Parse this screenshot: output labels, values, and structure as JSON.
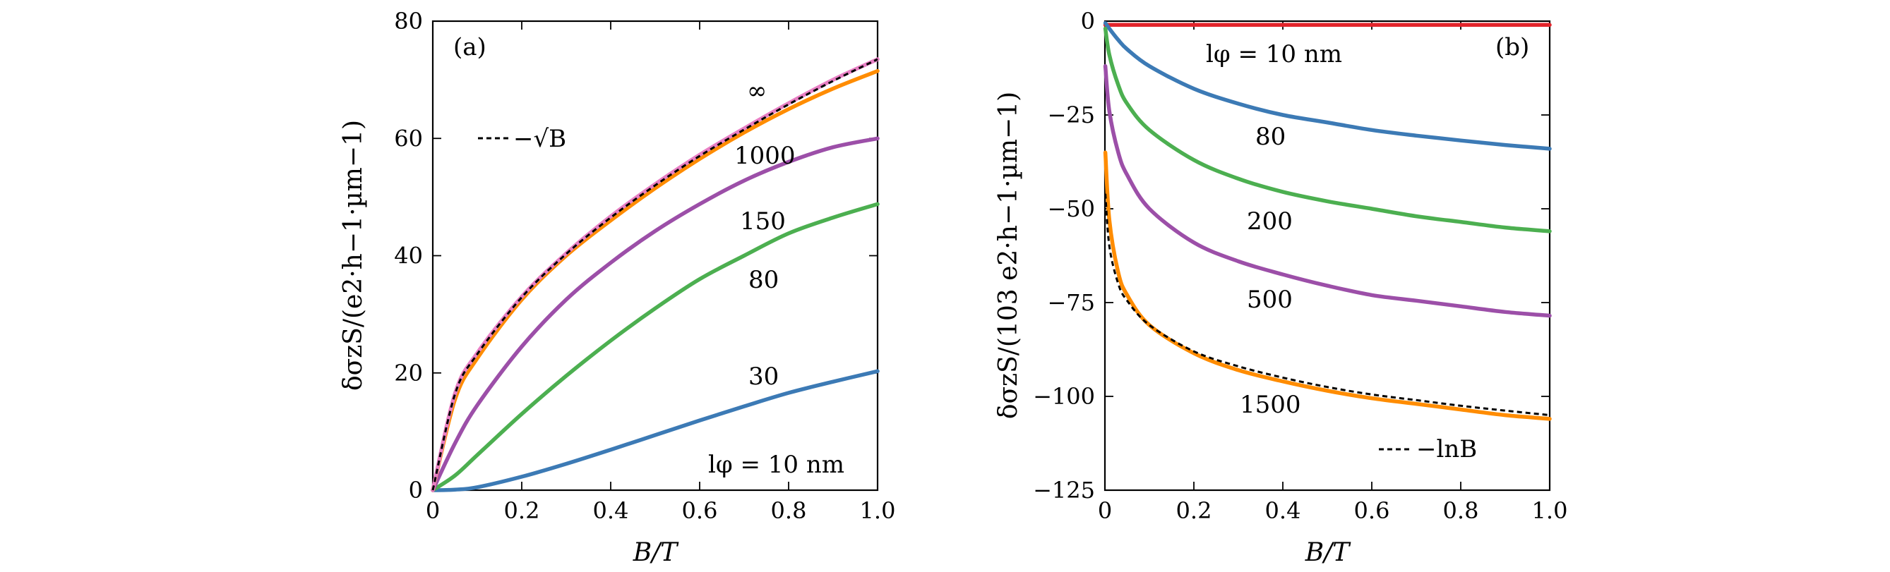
{
  "chart_data": [
    {
      "type": "line",
      "panel_label": "(a)",
      "xlabel": "B/T",
      "ylabel": "δσzS/(e2·h−1·µm−1)",
      "xlim": [
        0,
        1
      ],
      "ylim": [
        0,
        80
      ],
      "x_ticks": [
        "0",
        "0.2",
        "0.4",
        "0.6",
        "0.8",
        "1.0"
      ],
      "y_ticks": [
        "0",
        "20",
        "40",
        "60",
        "80"
      ],
      "legend_text": "−√B",
      "annotation_prefix": "lφ = 10 nm",
      "x": [
        0,
        0.05,
        0.1,
        0.2,
        0.3,
        0.4,
        0.5,
        0.6,
        0.7,
        0.8,
        0.9,
        1.0
      ],
      "series": [
        {
          "label": "30",
          "color": "#3c7ab5",
          "values": [
            0,
            0.1,
            0.5,
            2.3,
            4.5,
            6.9,
            9.4,
            11.9,
            14.3,
            16.6,
            18.5,
            20.3
          ]
        },
        {
          "label": "80",
          "color": "#4caf50",
          "values": [
            0,
            2.5,
            6.0,
            13.0,
            19.5,
            25.5,
            31.0,
            36.0,
            40.0,
            43.8,
            46.5,
            48.8
          ]
        },
        {
          "label": "150",
          "color": "#9c4fa8",
          "values": [
            0,
            8.0,
            14.5,
            24.5,
            32.5,
            38.8,
            44.2,
            48.8,
            52.8,
            56.0,
            58.5,
            60.0
          ]
        },
        {
          "label": "1000",
          "color": "#ff8c00",
          "values": [
            0,
            15.5,
            22.5,
            32.5,
            40.0,
            46.0,
            51.5,
            56.5,
            61.0,
            65.0,
            68.5,
            71.5
          ]
        },
        {
          "label": "∞",
          "color": "#e87fc4",
          "values": [
            0,
            16.5,
            23.4,
            33.0,
            40.4,
            46.7,
            52.2,
            57.2,
            61.7,
            66.0,
            70.0,
            73.5
          ]
        },
        {
          "label": "−√B",
          "color": "#000000",
          "dashed": true,
          "values": [
            0,
            16.4,
            23.2,
            32.9,
            40.3,
            46.5,
            52.0,
            57.0,
            61.5,
            65.8,
            69.8,
            73.5
          ]
        }
      ]
    },
    {
      "type": "line",
      "panel_label": "(b)",
      "xlabel": "B/T",
      "ylabel": "δσzS/(103 e2·h−1·µm−1)",
      "xlim": [
        0,
        1
      ],
      "ylim": [
        -125,
        0
      ],
      "x_ticks": [
        "0",
        "0.2",
        "0.4",
        "0.6",
        "0.8",
        "1.0"
      ],
      "y_ticks": [
        "0",
        "−25",
        "−50",
        "−75",
        "−100",
        "−125"
      ],
      "legend_text": "−lnB",
      "annotation_prefix": "lφ = 10 nm",
      "x": [
        0.001,
        0.01,
        0.03,
        0.05,
        0.1,
        0.2,
        0.3,
        0.4,
        0.5,
        0.6,
        0.7,
        0.8,
        0.9,
        1.0
      ],
      "series": [
        {
          "label": "10",
          "color": "#e3242b",
          "values": [
            -1,
            -1,
            -1,
            -1,
            -1,
            -1,
            -1,
            -1,
            -1,
            -1,
            -1,
            -1,
            -1,
            -1
          ]
        },
        {
          "label": "80",
          "color": "#3c7ab5",
          "values": [
            -0.5,
            -2,
            -5,
            -7.5,
            -12,
            -18,
            -22,
            -25,
            -27,
            -29,
            -30.5,
            -31.8,
            -33,
            -34
          ]
        },
        {
          "label": "200",
          "color": "#4caf50",
          "values": [
            -2,
            -9,
            -17,
            -22,
            -29,
            -37,
            -42,
            -45.5,
            -48,
            -50,
            -52,
            -53.5,
            -55,
            -56
          ]
        },
        {
          "label": "500",
          "color": "#9c4fa8",
          "values": [
            -12,
            -24,
            -35,
            -41,
            -50,
            -59,
            -64,
            -67.5,
            -70.5,
            -73,
            -74.5,
            -76,
            -77.5,
            -78.5
          ]
        },
        {
          "label": "1500",
          "color": "#ff8c00",
          "values": [
            -35,
            -53,
            -67,
            -73,
            -81,
            -88.5,
            -93,
            -96,
            -98.5,
            -100.5,
            -102,
            -103.5,
            -105,
            -106
          ]
        },
        {
          "label": "−lnB",
          "color": "#000000",
          "dashed": true,
          "values": [
            -46,
            -60,
            -70,
            -74.5,
            -81,
            -88,
            -92,
            -95,
            -97.5,
            -99.5,
            -101,
            -102.5,
            -103.8,
            -105
          ]
        }
      ]
    }
  ]
}
